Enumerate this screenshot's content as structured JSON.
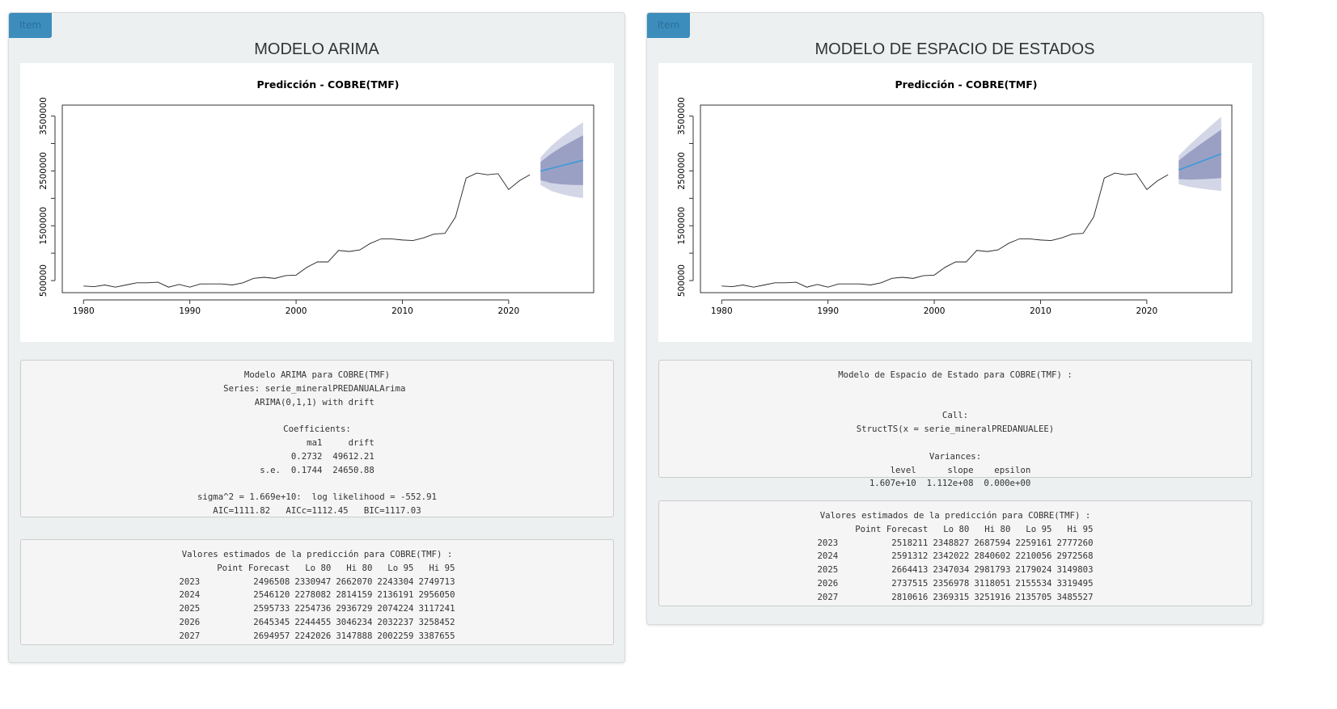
{
  "colors": {
    "accent": "#3c8dbc",
    "forecast_line": "#3b9ad9",
    "band80": "#9aa0c4",
    "band95": "#d3d6e6"
  },
  "left": {
    "badge": "Item",
    "title": "MODELO ARIMA",
    "plot_title": "Predicción -  COBRE(TMF)",
    "model_text": "Modelo ARIMA para COBRE(TMF)\nSeries: serie_mineralPREDANUALArima \nARIMA(0,1,1) with drift \n\nCoefficients:\n         ma1     drift\n      0.2732  49612.21\ns.e.  0.1744  24650.88\n\nsigma^2 = 1.669e+10:  log likelihood = -552.91\nAIC=1111.82   AICc=1112.45   BIC=1117.03",
    "forecast_title": "Valores estimados de la predicción para COBRE(TMF) :",
    "forecast_header": [
      "",
      "Point Forecast",
      "Lo 80",
      "Hi 80",
      "Lo 95",
      "Hi 95"
    ],
    "forecast_rows": [
      [
        "2023",
        "2496508",
        "2330947",
        "2662070",
        "2243304",
        "2749713"
      ],
      [
        "2024",
        "2546120",
        "2278082",
        "2814159",
        "2136191",
        "2956050"
      ],
      [
        "2025",
        "2595733",
        "2254736",
        "2936729",
        "2074224",
        "3117241"
      ],
      [
        "2026",
        "2645345",
        "2244455",
        "3046234",
        "2032237",
        "3258452"
      ],
      [
        "2027",
        "2694957",
        "2242026",
        "3147888",
        "2002259",
        "3387655"
      ]
    ]
  },
  "right": {
    "badge": "Item",
    "title": "MODELO DE ESPACIO DE ESTADOS",
    "plot_title": "Predicción - COBRE(TMF)",
    "model_text": "Modelo de Espacio de Estado para COBRE(TMF) :\n\n\nCall:\nStructTS(x = serie_mineralPREDANUALEE)\n\nVariances:\n    level      slope    epsilon  \n1.607e+10  1.112e+08  0.000e+00  ",
    "forecast_title": "Valores estimados de la predicción para COBRE(TMF) :",
    "forecast_header": [
      "",
      "Point Forecast",
      "Lo 80",
      "Hi 80",
      "Lo 95",
      "Hi 95"
    ],
    "forecast_rows": [
      [
        "2023",
        "2518211",
        "2348827",
        "2687594",
        "2259161",
        "2777260"
      ],
      [
        "2024",
        "2591312",
        "2342022",
        "2840602",
        "2210056",
        "2972568"
      ],
      [
        "2025",
        "2664413",
        "2347034",
        "2981793",
        "2179024",
        "3149803"
      ],
      [
        "2026",
        "2737515",
        "2356978",
        "3118051",
        "2155534",
        "3319495"
      ],
      [
        "2027",
        "2810616",
        "2369315",
        "3251916",
        "2135705",
        "3485527"
      ]
    ]
  },
  "chart_data": [
    {
      "type": "line",
      "title": "Predicción -  COBRE(TMF)",
      "xlabel": "",
      "ylabel": "",
      "xlim": [
        1978,
        2028
      ],
      "ylim": [
        280000,
        3700000
      ],
      "x_ticks": [
        1980,
        1990,
        2000,
        2010,
        2020
      ],
      "y_ticks": [
        500000,
        1500000,
        2500000,
        3500000
      ],
      "grid": false,
      "history": {
        "x": [
          1980,
          1981,
          1982,
          1983,
          1984,
          1985,
          1986,
          1987,
          1988,
          1989,
          1990,
          1991,
          1992,
          1993,
          1994,
          1995,
          1996,
          1997,
          1998,
          1999,
          2000,
          2001,
          2002,
          2003,
          2004,
          2005,
          2006,
          2007,
          2008,
          2009,
          2010,
          2011,
          2012,
          2013,
          2014,
          2015,
          2016,
          2017,
          2018,
          2019,
          2020,
          2021,
          2022
        ],
        "y": [
          400000,
          390000,
          420000,
          380000,
          420000,
          460000,
          460000,
          470000,
          380000,
          430000,
          380000,
          440000,
          440000,
          440000,
          420000,
          460000,
          540000,
          560000,
          540000,
          590000,
          600000,
          740000,
          840000,
          840000,
          1050000,
          1030000,
          1060000,
          1180000,
          1260000,
          1260000,
          1240000,
          1230000,
          1280000,
          1350000,
          1360000,
          1660000,
          2370000,
          2460000,
          2430000,
          2450000,
          2160000,
          2320000,
          2430000
        ]
      },
      "forecast": {
        "x": [
          2023,
          2024,
          2025,
          2026,
          2027
        ],
        "point": [
          2496508,
          2546120,
          2595733,
          2645345,
          2694957
        ],
        "lo80": [
          2330947,
          2278082,
          2254736,
          2244455,
          2242026
        ],
        "hi80": [
          2662070,
          2814159,
          2936729,
          3046234,
          3147888
        ],
        "lo95": [
          2243304,
          2136191,
          2074224,
          2032237,
          2002259
        ],
        "hi95": [
          2749713,
          2956050,
          3117241,
          3258452,
          3387655
        ]
      }
    },
    {
      "type": "line",
      "title": "Predicción - COBRE(TMF)",
      "xlabel": "",
      "ylabel": "",
      "xlim": [
        1978,
        2028
      ],
      "ylim": [
        280000,
        3700000
      ],
      "x_ticks": [
        1980,
        1990,
        2000,
        2010,
        2020
      ],
      "y_ticks": [
        500000,
        1500000,
        2500000,
        3500000
      ],
      "grid": false,
      "history": {
        "x": [
          1980,
          1981,
          1982,
          1983,
          1984,
          1985,
          1986,
          1987,
          1988,
          1989,
          1990,
          1991,
          1992,
          1993,
          1994,
          1995,
          1996,
          1997,
          1998,
          1999,
          2000,
          2001,
          2002,
          2003,
          2004,
          2005,
          2006,
          2007,
          2008,
          2009,
          2010,
          2011,
          2012,
          2013,
          2014,
          2015,
          2016,
          2017,
          2018,
          2019,
          2020,
          2021,
          2022
        ],
        "y": [
          400000,
          390000,
          420000,
          380000,
          420000,
          460000,
          460000,
          470000,
          380000,
          430000,
          380000,
          440000,
          440000,
          440000,
          420000,
          460000,
          540000,
          560000,
          540000,
          590000,
          600000,
          740000,
          840000,
          840000,
          1050000,
          1030000,
          1060000,
          1180000,
          1260000,
          1260000,
          1240000,
          1230000,
          1280000,
          1350000,
          1360000,
          1660000,
          2370000,
          2460000,
          2430000,
          2450000,
          2160000,
          2320000,
          2430000
        ]
      },
      "forecast": {
        "x": [
          2023,
          2024,
          2025,
          2026,
          2027
        ],
        "point": [
          2518211,
          2591312,
          2664413,
          2737515,
          2810616
        ],
        "lo80": [
          2348827,
          2342022,
          2347034,
          2356978,
          2369315
        ],
        "hi80": [
          2687594,
          2840602,
          2981793,
          3118051,
          3251916
        ],
        "lo95": [
          2259161,
          2210056,
          2179024,
          2155534,
          2135705
        ],
        "hi95": [
          2777260,
          2972568,
          3149803,
          3319495,
          3485527
        ]
      }
    }
  ]
}
